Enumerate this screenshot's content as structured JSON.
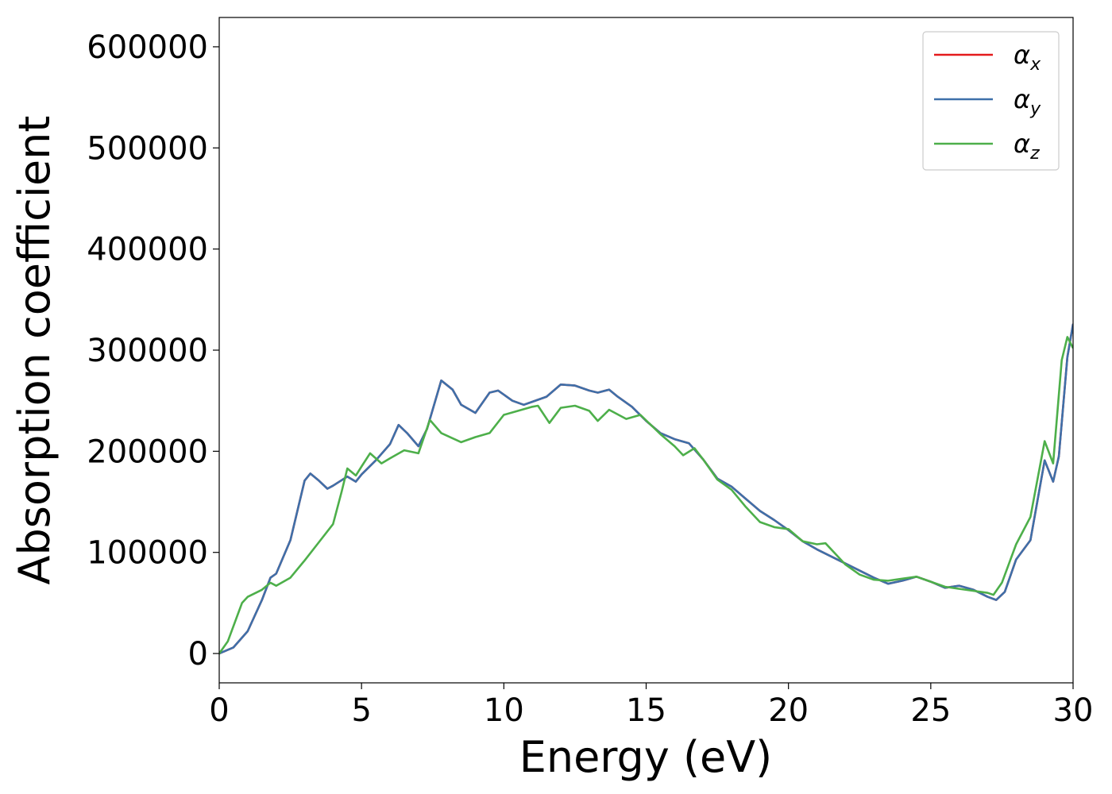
{
  "chart_data": {
    "type": "line",
    "xlabel": "Energy (eV)",
    "ylabel": "Absorption coefficient",
    "xlim": [
      0,
      30
    ],
    "ylim": [
      -29000,
      629000
    ],
    "xticks": [
      0,
      5,
      10,
      15,
      20,
      25,
      30
    ],
    "yticks": [
      0,
      100000,
      200000,
      300000,
      400000,
      500000,
      600000
    ],
    "legend": "upper right",
    "series": [
      {
        "name": "αx",
        "color": "#e41a1c",
        "x": [
          0,
          0.5,
          1.0,
          1.5,
          1.8,
          2.0,
          2.5,
          3.0,
          3.2,
          3.5,
          3.8,
          4.0,
          4.5,
          4.8,
          5.0,
          5.5,
          6.0,
          6.3,
          6.6,
          7.0,
          7.3,
          7.8,
          8.2,
          8.5,
          9.0,
          9.5,
          9.8,
          10.3,
          10.7,
          11.0,
          11.5,
          12.0,
          12.5,
          13.0,
          13.3,
          13.7,
          14.0,
          14.5,
          15.0,
          15.5,
          16.0,
          16.5,
          17.0,
          17.5,
          18.0,
          18.5,
          19.0,
          19.5,
          20.0,
          20.5,
          21.0,
          22.0,
          23.0,
          23.5,
          24.0,
          24.5,
          25.0,
          25.5,
          26.0,
          26.5,
          27.0,
          27.3,
          27.6,
          28.0,
          28.5,
          29.0,
          29.3,
          29.5,
          29.8,
          30.0
        ],
        "values": [
          0,
          6000,
          22000,
          53000,
          75000,
          79000,
          112000,
          171000,
          178000,
          171000,
          163000,
          166000,
          175000,
          170000,
          177000,
          191000,
          207000,
          226000,
          218000,
          205000,
          222000,
          270000,
          261000,
          246000,
          238000,
          258000,
          260000,
          250000,
          246000,
          249000,
          254000,
          266000,
          265000,
          260000,
          258000,
          261000,
          254000,
          244000,
          230000,
          218000,
          212000,
          208000,
          192000,
          173000,
          165000,
          153000,
          141000,
          132000,
          122000,
          111000,
          103000,
          89000,
          75000,
          69000,
          72000,
          76000,
          71000,
          65000,
          67000,
          63000,
          56000,
          53000,
          61000,
          93000,
          112000,
          191000,
          170000,
          195000,
          293000,
          326000
        ]
      },
      {
        "name": "αy",
        "color": "#3e70a9",
        "x": [
          0,
          0.5,
          1.0,
          1.5,
          1.8,
          2.0,
          2.5,
          3.0,
          3.2,
          3.5,
          3.8,
          4.0,
          4.5,
          4.8,
          5.0,
          5.5,
          6.0,
          6.3,
          6.6,
          7.0,
          7.3,
          7.8,
          8.2,
          8.5,
          9.0,
          9.5,
          9.8,
          10.3,
          10.7,
          11.0,
          11.5,
          12.0,
          12.5,
          13.0,
          13.3,
          13.7,
          14.0,
          14.5,
          15.0,
          15.5,
          16.0,
          16.5,
          17.0,
          17.5,
          18.0,
          18.5,
          19.0,
          19.5,
          20.0,
          20.5,
          21.0,
          22.0,
          23.0,
          23.5,
          24.0,
          24.5,
          25.0,
          25.5,
          26.0,
          26.5,
          27.0,
          27.3,
          27.6,
          28.0,
          28.5,
          29.0,
          29.3,
          29.5,
          29.8,
          30.0
        ],
        "values": [
          0,
          6000,
          22000,
          53000,
          75000,
          79000,
          112000,
          171000,
          178000,
          171000,
          163000,
          166000,
          175000,
          170000,
          177000,
          191000,
          207000,
          226000,
          218000,
          205000,
          222000,
          270000,
          261000,
          246000,
          238000,
          258000,
          260000,
          250000,
          246000,
          249000,
          254000,
          266000,
          265000,
          260000,
          258000,
          261000,
          254000,
          244000,
          230000,
          218000,
          212000,
          208000,
          192000,
          173000,
          165000,
          153000,
          141000,
          132000,
          122000,
          111000,
          103000,
          89000,
          75000,
          69000,
          72000,
          76000,
          71000,
          65000,
          67000,
          63000,
          56000,
          53000,
          61000,
          93000,
          112000,
          191000,
          170000,
          195000,
          293000,
          326000
        ]
      },
      {
        "name": "αz",
        "color": "#4daf4a",
        "x": [
          0,
          0.3,
          0.8,
          1.0,
          1.5,
          1.8,
          2.0,
          2.5,
          3.0,
          3.5,
          4.0,
          4.3,
          4.5,
          4.8,
          5.0,
          5.3,
          5.7,
          6.0,
          6.5,
          7.0,
          7.4,
          7.8,
          8.5,
          9.0,
          9.5,
          10.0,
          10.5,
          11.0,
          11.2,
          11.6,
          12.0,
          12.5,
          13.0,
          13.3,
          13.7,
          14.3,
          14.8,
          15.5,
          16.0,
          16.3,
          16.7,
          17.0,
          17.5,
          18.0,
          18.5,
          19.0,
          19.5,
          20.0,
          20.5,
          21.0,
          21.3,
          21.7,
          22.0,
          22.5,
          23.0,
          23.5,
          24.0,
          24.5,
          25.0,
          25.5,
          26.0,
          26.5,
          27.0,
          27.2,
          27.5,
          28.0,
          28.5,
          29.0,
          29.3,
          29.6,
          29.8,
          30.0
        ],
        "values": [
          0,
          12000,
          50000,
          56000,
          63000,
          70000,
          67000,
          75000,
          92000,
          110000,
          128000,
          160000,
          183000,
          176000,
          185000,
          198000,
          188000,
          193000,
          201000,
          198000,
          231000,
          218000,
          209000,
          214000,
          218000,
          236000,
          240000,
          244000,
          245000,
          228000,
          243000,
          245000,
          240000,
          230000,
          241000,
          232000,
          236000,
          217000,
          205000,
          196000,
          203000,
          192000,
          172000,
          162000,
          145000,
          130000,
          125000,
          123000,
          111000,
          108000,
          109000,
          97000,
          88000,
          78000,
          73000,
          72000,
          74000,
          76000,
          71000,
          66000,
          64000,
          62000,
          60000,
          58000,
          70000,
          108000,
          135000,
          210000,
          188000,
          290000,
          313000,
          302000
        ]
      }
    ]
  }
}
